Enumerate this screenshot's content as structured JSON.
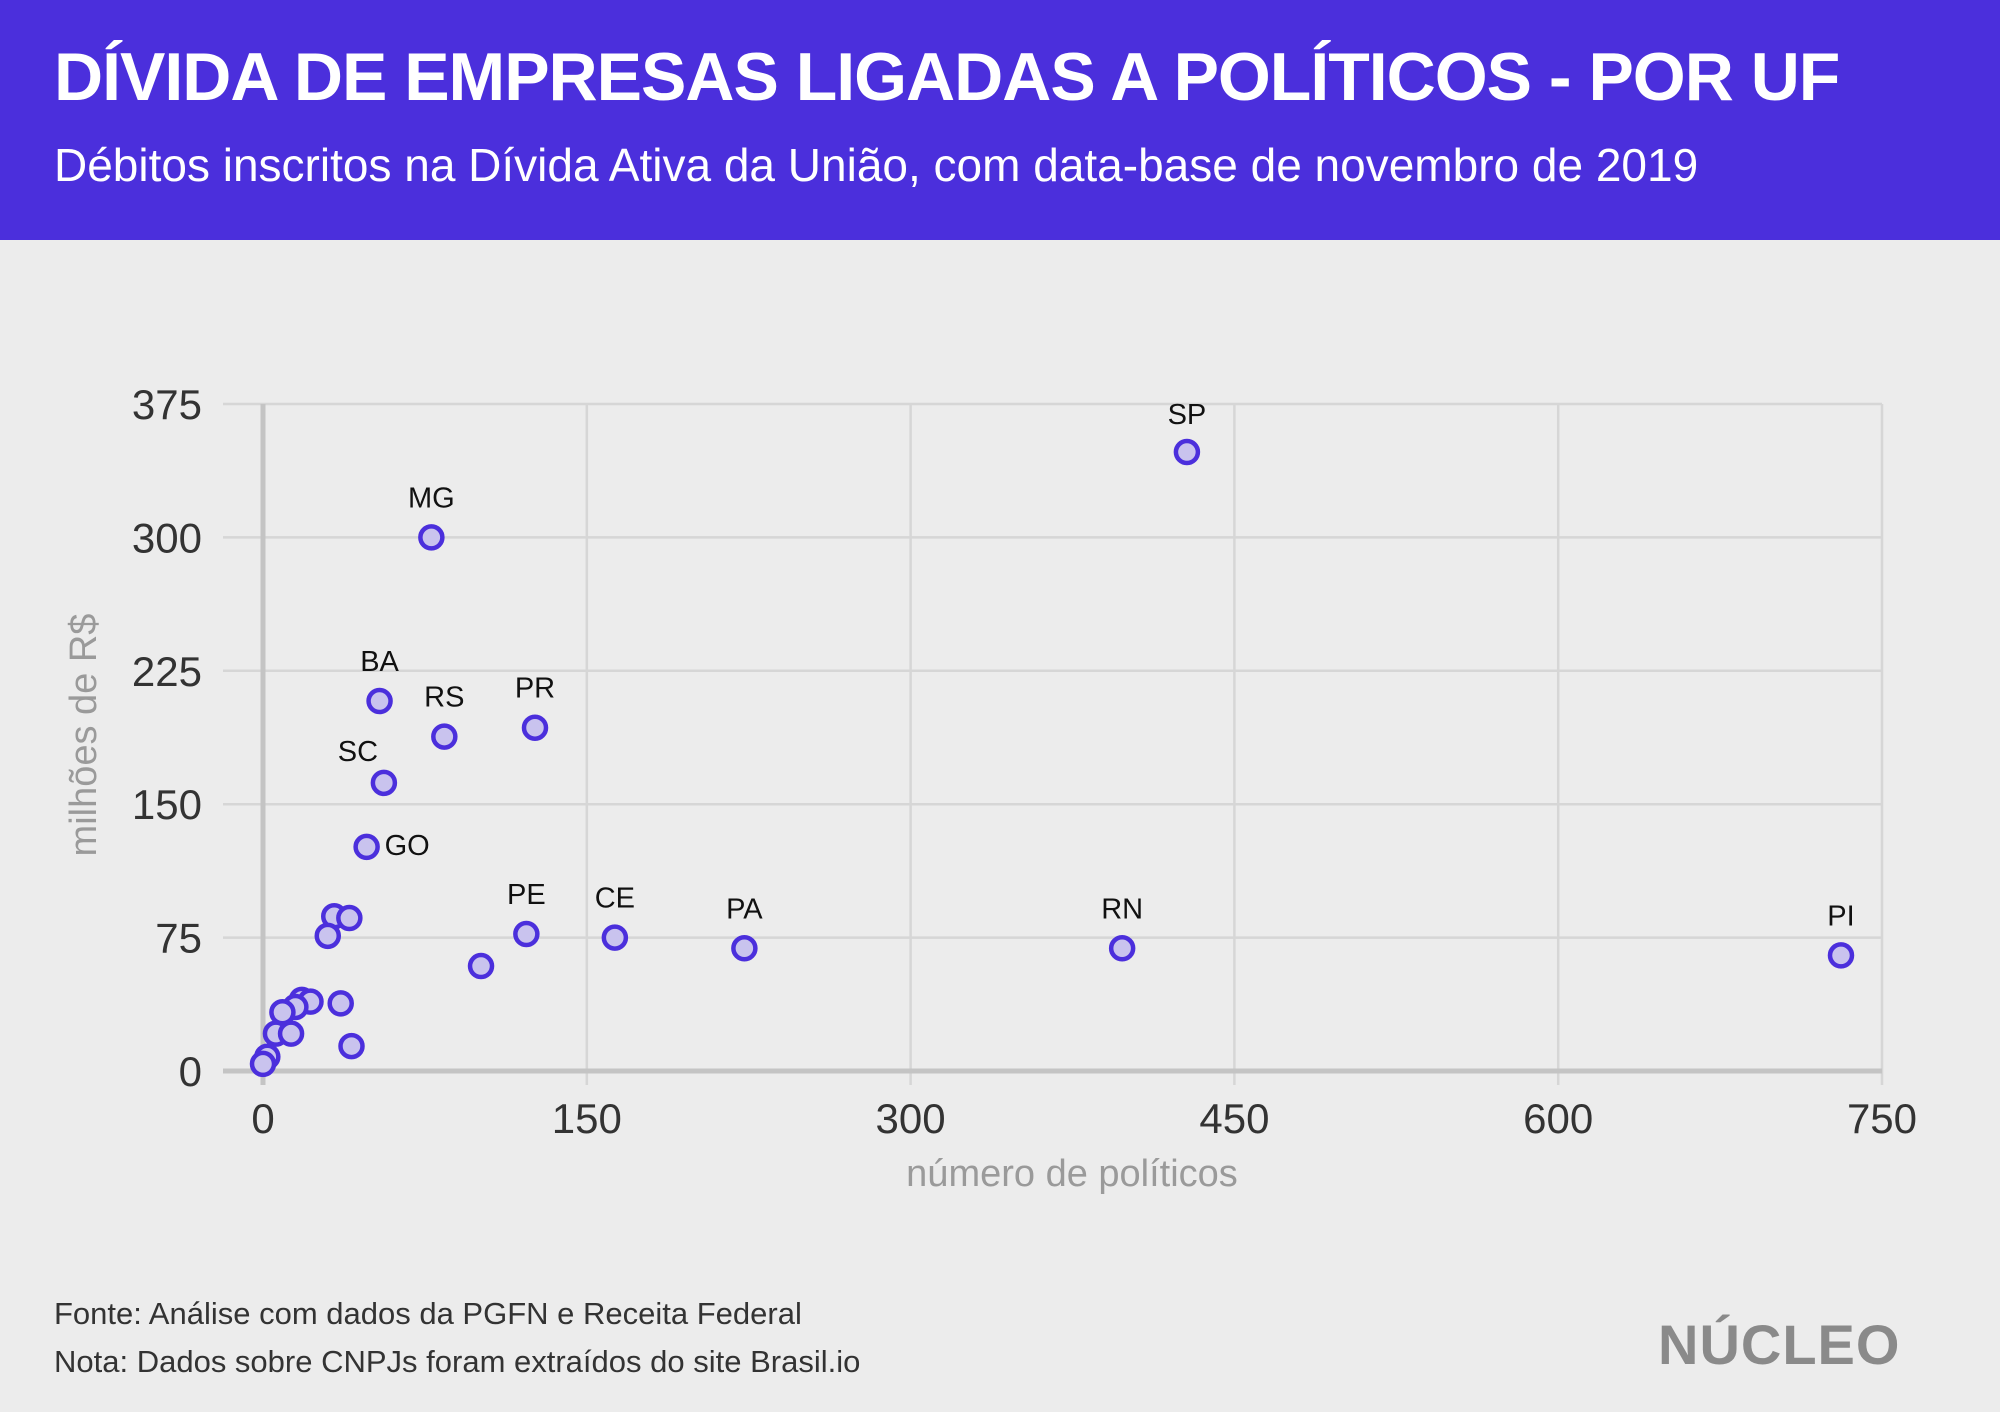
{
  "header": {
    "title": "DÍVIDA DE EMPRESAS LIGADAS A POLÍTICOS - POR UF",
    "subtitle": "Débitos inscritos na Dívida Ativa da União, com data-base de novembro de 2019"
  },
  "colors": {
    "header_bg": "#4b2fdc",
    "point_stroke": "#4b2fdc",
    "point_fill": "#c9c3ee",
    "grid": "#d6d6d6",
    "axis": "#c4c4c4"
  },
  "chart_data": {
    "type": "scatter",
    "xlabel": "número de políticos",
    "ylabel": "milhões de R$",
    "xlim": [
      0,
      750
    ],
    "ylim": [
      0,
      375
    ],
    "xticks": [
      "0",
      "150",
      "300",
      "450",
      "600",
      "750"
    ],
    "yticks": [
      "0",
      "75",
      "150",
      "225",
      "300",
      "375"
    ],
    "grid": true,
    "points": [
      {
        "label": "SP",
        "x": 428,
        "y": 348
      },
      {
        "label": "MG",
        "x": 78,
        "y": 300
      },
      {
        "label": "BA",
        "x": 54,
        "y": 208
      },
      {
        "label": "RS",
        "x": 84,
        "y": 188
      },
      {
        "label": "PR",
        "x": 126,
        "y": 193
      },
      {
        "label": "SC",
        "x": 56,
        "y": 162
      },
      {
        "label": "GO",
        "x": 48,
        "y": 126
      },
      {
        "label": "PE",
        "x": 122,
        "y": 77
      },
      {
        "label": "CE",
        "x": 163,
        "y": 75
      },
      {
        "label": "PA",
        "x": 223,
        "y": 69
      },
      {
        "label": "RN",
        "x": 398,
        "y": 69
      },
      {
        "label": "PI",
        "x": 731,
        "y": 65
      },
      {
        "label": "",
        "x": 33,
        "y": 87
      },
      {
        "label": "",
        "x": 40,
        "y": 86
      },
      {
        "label": "",
        "x": 30,
        "y": 76
      },
      {
        "label": "",
        "x": 101,
        "y": 59
      },
      {
        "label": "",
        "x": 18,
        "y": 40
      },
      {
        "label": "",
        "x": 22,
        "y": 39
      },
      {
        "label": "",
        "x": 36,
        "y": 38
      },
      {
        "label": "",
        "x": 15,
        "y": 36
      },
      {
        "label": "",
        "x": 9,
        "y": 33
      },
      {
        "label": "",
        "x": 6,
        "y": 21
      },
      {
        "label": "",
        "x": 13,
        "y": 21
      },
      {
        "label": "",
        "x": 41,
        "y": 14
      },
      {
        "label": "",
        "x": 2,
        "y": 8
      },
      {
        "label": "",
        "x": 0,
        "y": 4
      }
    ]
  },
  "footer": {
    "source": "Fonte: Análise com dados da PGFN e Receita Federal",
    "note": "Nota: Dados sobre CNPJs foram extraídos do site Brasil.io",
    "logo": "NÚCLEO"
  }
}
